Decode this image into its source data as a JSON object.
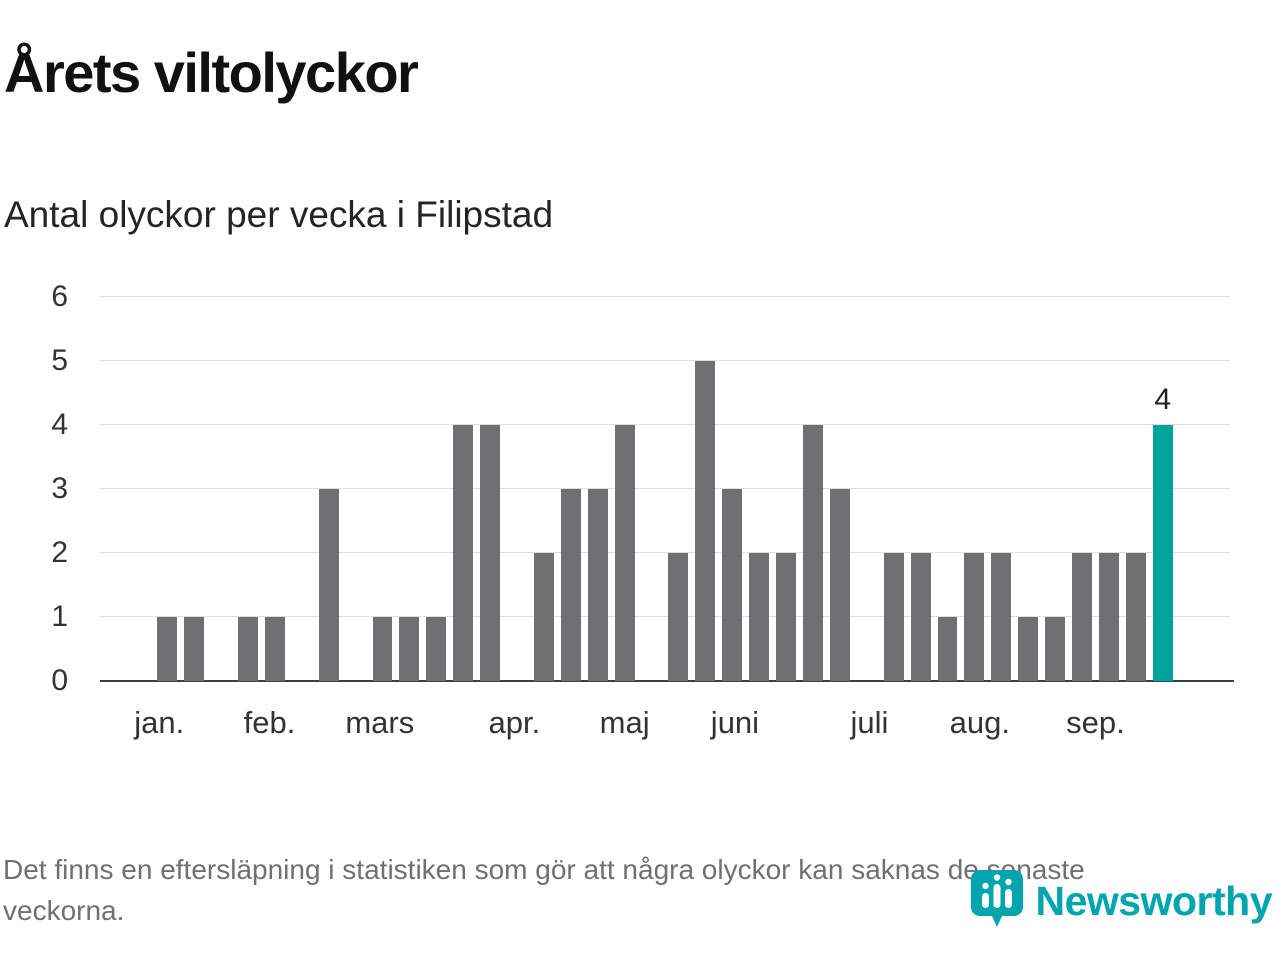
{
  "header": {
    "title": "Årets viltolyckor",
    "subtitle": "Antal olyckor per vecka i Filipstad"
  },
  "chart_data": {
    "type": "bar",
    "title": "Årets viltolyckor",
    "subtitle": "Antal olyckor per vecka i Filipstad",
    "xlabel": "",
    "ylabel": "",
    "ylim": [
      0,
      6
    ],
    "yticks": [
      0,
      1,
      2,
      3,
      4,
      5,
      6
    ],
    "grid": true,
    "bar_color": "#6f6f73",
    "highlight_color": "#00a49c",
    "x_unit": "vecka",
    "values": [
      0,
      0,
      1,
      1,
      0,
      1,
      1,
      0,
      3,
      0,
      1,
      1,
      1,
      4,
      4,
      0,
      2,
      3,
      3,
      4,
      0,
      2,
      5,
      3,
      2,
      2,
      4,
      3,
      0,
      2,
      2,
      1,
      2,
      2,
      1,
      1,
      2,
      2,
      2,
      4,
      0,
      0
    ],
    "highlight_index": 39,
    "highlight_label": "4",
    "months": [
      {
        "label": "jan.",
        "week": 2.7
      },
      {
        "label": "feb.",
        "week": 6.8
      },
      {
        "label": "mars",
        "week": 10.9
      },
      {
        "label": "apr.",
        "week": 15.9
      },
      {
        "label": "maj",
        "week": 20.0
      },
      {
        "label": "juni",
        "week": 24.1
      },
      {
        "label": "juli",
        "week": 29.1
      },
      {
        "label": "aug.",
        "week": 33.2
      },
      {
        "label": "sep.",
        "week": 37.5
      }
    ]
  },
  "footer": {
    "note": "Det finns en eftersläpning i statistiken som gör att några olyckor kan saknas de senaste veckorna.",
    "brand": "Newsworthy",
    "brand_color": "#00a5ad"
  }
}
